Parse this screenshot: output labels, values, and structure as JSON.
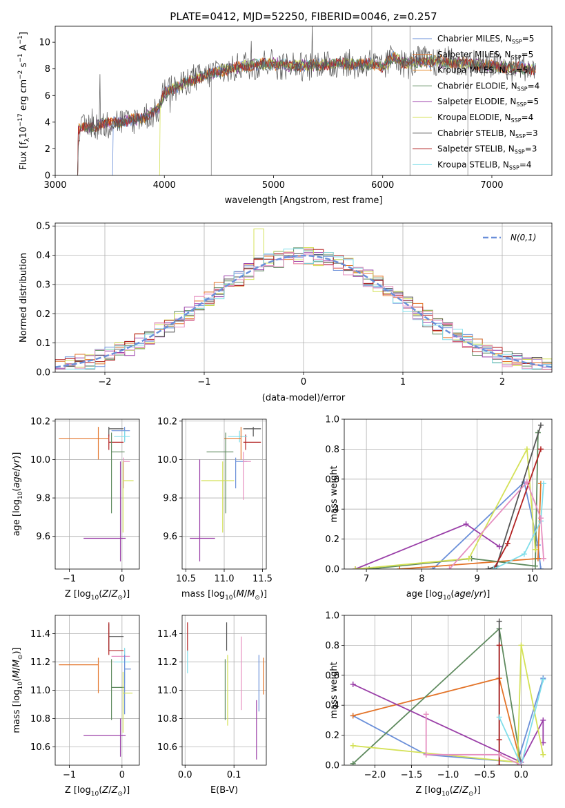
{
  "title": "PLATE=0412, MJD=52250, FIBERID=0046, z=0.257",
  "chart_data": [
    {
      "id": "spectrum",
      "type": "line",
      "xlabel": "wavelength [Angstrom, rest frame]",
      "ylabel": "Flux [f_λ 10^-17 erg cm^-2 s^-1 A^-1]",
      "xlim": [
        3000,
        7550
      ],
      "ylim": [
        0,
        11.2
      ],
      "xticks": [
        3000,
        4000,
        5000,
        6000,
        7000
      ],
      "yticks": [
        0,
        2,
        4,
        6,
        8,
        10
      ],
      "grid": false,
      "legend_position": "top-right",
      "series": [
        {
          "name": "Chabrier MILES, N_SSP=5",
          "color": "#6a8fd9"
        },
        {
          "name": "Salpeter MILES, N_SSP=5",
          "color": "#e37328"
        },
        {
          "name": "Kroupa MILES, N_SSP=5",
          "color": "#e48c2c"
        },
        {
          "name": "Chabrier ELODIE, N_SSP=4",
          "color": "#5e8a5e"
        },
        {
          "name": "Salpeter ELODIE, N_SSP=5",
          "color": "#9a3fa8"
        },
        {
          "name": "Kroupa ELODIE, N_SSP=4",
          "color": "#d4e157"
        },
        {
          "name": "Chabrier STELIB, N_SSP=3",
          "color": "#555555"
        },
        {
          "name": "Salpeter STELIB, N_SSP=3",
          "color": "#b22222"
        },
        {
          "name": "Kroupa STELIB, N_SSP=4",
          "color": "#80deea"
        }
      ],
      "continuum": {
        "x": [
          3200,
          3400,
          3600,
          3800,
          3950,
          4000,
          4200,
          4400,
          4600,
          4800,
          5000,
          5200,
          5400,
          5600,
          5800,
          5900,
          6000,
          6100,
          6200,
          6400,
          6600,
          6800,
          7000,
          7200,
          7400
        ],
        "y": [
          3.4,
          3.8,
          4.0,
          4.3,
          5.0,
          6.2,
          7.0,
          7.6,
          8.0,
          8.3,
          8.4,
          8.2,
          8.3,
          8.4,
          8.3,
          8.4,
          8.1,
          8.9,
          8.4,
          8.6,
          8.5,
          8.4,
          8.2,
          8.1,
          8.0
        ]
      }
    },
    {
      "id": "residuals",
      "type": "histogram",
      "xlabel": "(data-model)/error",
      "ylabel": "Normed distribution",
      "xlim": [
        -2.5,
        2.5
      ],
      "ylim": [
        0,
        0.51
      ],
      "xticks": [
        -2,
        -1,
        0,
        1,
        2
      ],
      "yticks": [
        0.0,
        0.1,
        0.2,
        0.3,
        0.4,
        0.5
      ],
      "grid": true,
      "legend_position": "top-right",
      "legend": "N(0,1)",
      "bin_width": 0.1,
      "gaussian": {
        "mean": 0,
        "sigma": 1,
        "color": "#6a8fd9"
      }
    },
    {
      "id": "age-vs-Z",
      "type": "scatter",
      "xlabel": "Z [log10(Z/Z⊙)]",
      "ylabel": "age  [log10(age/yr)]",
      "xlim": [
        -1.27,
        0.33
      ],
      "ylim": [
        9.43,
        10.21
      ],
      "xticks": [
        -1,
        0
      ],
      "yticks": [
        9.6,
        9.8,
        10.0,
        10.2
      ],
      "grid": true,
      "points": [
        {
          "x": -0.25,
          "y": 10.16,
          "xerr": [
            0.0,
            0.28
          ],
          "yerr": [
            0.04,
            0.01
          ],
          "color": "#555555"
        },
        {
          "x": -0.25,
          "y": 10.09,
          "xerr": [
            0.0,
            0.28
          ],
          "yerr": [
            0.04,
            0.04
          ],
          "color": "#b22222"
        },
        {
          "x": 0.05,
          "y": 10.15,
          "xerr": [
            0.25,
            0.1
          ],
          "yerr": [
            0.05,
            0.02
          ],
          "color": "#6a8fd9"
        },
        {
          "x": 0.05,
          "y": 10.12,
          "xerr": [
            0.2,
            0.1
          ],
          "yerr": [
            0.03,
            0.03
          ],
          "color": "#80deea"
        },
        {
          "x": -0.45,
          "y": 10.11,
          "xerr": [
            0.75,
            0.2
          ],
          "yerr": [
            0.11,
            0.06
          ],
          "color": "#e37328"
        },
        {
          "x": -0.2,
          "y": 10.04,
          "xerr": [
            0.0,
            0.25
          ],
          "yerr": [
            0.32,
            0.1
          ],
          "color": "#5e8a5e"
        },
        {
          "x": 0.03,
          "y": 9.99,
          "xerr": [
            0.0,
            0.12
          ],
          "yerr": [
            0.14,
            0.02
          ],
          "color": "#e68fc0"
        },
        {
          "x": 0.02,
          "y": 9.89,
          "xerr": [
            0.0,
            0.2
          ],
          "yerr": [
            0.27,
            0.1
          ],
          "color": "#d4e157"
        },
        {
          "x": -0.03,
          "y": 9.59,
          "xerr": [
            0.7,
            0.1
          ],
          "yerr": [
            0.12,
            0.4
          ],
          "color": "#9a3fa8"
        }
      ]
    },
    {
      "id": "age-vs-mass",
      "type": "scatter",
      "xlabel": "mass [log10(M/M⊙)]",
      "ylabel": "",
      "xlim": [
        10.45,
        11.55
      ],
      "ylim": [
        9.43,
        10.21
      ],
      "xticks": [
        10.5,
        11.0,
        11.5
      ],
      "yticks": [
        9.6,
        9.8,
        10.0,
        10.2
      ],
      "grid": true,
      "points": [
        {
          "x": 11.38,
          "y": 10.16,
          "xerr": [
            0.13,
            0.1
          ],
          "yerr": [
            0.04,
            0.01
          ],
          "color": "#555555"
        },
        {
          "x": 11.28,
          "y": 10.09,
          "xerr": [
            0.03,
            0.2
          ],
          "yerr": [
            0.04,
            0.04
          ],
          "color": "#b22222"
        },
        {
          "x": 11.2,
          "y": 10.12,
          "xerr": [
            0.15,
            0.1
          ],
          "yerr": [
            0.03,
            0.03
          ],
          "color": "#80deea"
        },
        {
          "x": 11.22,
          "y": 10.11,
          "xerr": [
            0.22,
            0.0
          ],
          "yerr": [
            0.11,
            0.06
          ],
          "color": "#e37328"
        },
        {
          "x": 11.02,
          "y": 10.04,
          "xerr": [
            0.25,
            0.1
          ],
          "yerr": [
            0.32,
            0.1
          ],
          "color": "#5e8a5e"
        },
        {
          "x": 11.15,
          "y": 9.99,
          "xerr": [
            0.0,
            0.15
          ],
          "yerr": [
            0.14,
            0.02
          ],
          "color": "#6a8fd9"
        },
        {
          "x": 11.25,
          "y": 9.99,
          "xerr": [
            0.0,
            0.1
          ],
          "yerr": [
            0.2,
            0.05
          ],
          "color": "#e68fc0"
        },
        {
          "x": 10.98,
          "y": 9.89,
          "xerr": [
            0.28,
            0.15
          ],
          "yerr": [
            0.27,
            0.1
          ],
          "color": "#d4e157"
        },
        {
          "x": 10.68,
          "y": 9.59,
          "xerr": [
            0.13,
            0.2
          ],
          "yerr": [
            0.12,
            0.41
          ],
          "color": "#9a3fa8"
        }
      ]
    },
    {
      "id": "weight-vs-age",
      "type": "line",
      "xlabel": "age  [log10(age/yr)]",
      "ylabel": "mass weight",
      "xlim": [
        6.6,
        10.35
      ],
      "ylim": [
        0,
        1.0
      ],
      "xticks": [
        7,
        8,
        9,
        10
      ],
      "yticks": [
        0.0,
        0.2,
        0.4,
        0.6,
        0.8,
        1.0
      ],
      "grid": true,
      "series": [
        {
          "color": "#6a8fd9",
          "x": [
            8.2,
            9.85,
            10.1,
            10.15
          ],
          "y": [
            0.0,
            0.58,
            0.16,
            0.0
          ]
        },
        {
          "color": "#e37328",
          "x": [
            7.6,
            10.1,
            10.15
          ],
          "y": [
            0.0,
            0.07,
            0.57
          ]
        },
        {
          "color": "#5e8a5e",
          "x": [
            7.05,
            8.9,
            10.05,
            10.1
          ],
          "y": [
            0.0,
            0.07,
            0.02,
            0.91
          ]
        },
        {
          "color": "#9a3fa8",
          "x": [
            6.8,
            8.8,
            9.4
          ],
          "y": [
            0.0,
            0.3,
            0.15
          ]
        },
        {
          "color": "#d4e157",
          "x": [
            6.8,
            8.85,
            9.9,
            10.05
          ],
          "y": [
            0.0,
            0.07,
            0.8,
            0.13
          ]
        },
        {
          "color": "#555555",
          "x": [
            9.2,
            9.35,
            10.15
          ],
          "y": [
            0.0,
            0.02,
            0.96
          ]
        },
        {
          "color": "#b22222",
          "x": [
            9.3,
            9.55,
            10.15
          ],
          "y": [
            0.0,
            0.17,
            0.8
          ]
        },
        {
          "color": "#80deea",
          "x": [
            9.3,
            9.85,
            10.15,
            10.2
          ],
          "y": [
            0.0,
            0.1,
            0.32,
            0.57
          ]
        },
        {
          "color": "#e68fc0",
          "x": [
            8.5,
            9.9,
            10.15,
            10.2
          ],
          "y": [
            0.0,
            0.58,
            0.34,
            0.07
          ]
        }
      ]
    },
    {
      "id": "mass-vs-Z",
      "type": "scatter",
      "xlabel": "Z [log10(Z/Z⊙)]",
      "ylabel": "mass [log10(M/M⊙)]",
      "xlim": [
        -1.27,
        0.33
      ],
      "ylim": [
        10.47,
        11.53
      ],
      "xticks": [
        -1,
        0
      ],
      "yticks": [
        10.6,
        10.8,
        11.0,
        11.2,
        11.4
      ],
      "grid": true,
      "points": [
        {
          "x": -0.25,
          "y": 11.38,
          "xerr": [
            0.0,
            0.28
          ],
          "yerr": [
            0.1,
            0.09
          ],
          "color": "#555555"
        },
        {
          "x": -0.25,
          "y": 11.28,
          "xerr": [
            0.0,
            0.28
          ],
          "yerr": [
            0.03,
            0.2
          ],
          "color": "#b22222"
        },
        {
          "x": 0.05,
          "y": 11.24,
          "xerr": [
            0.25,
            0.1
          ],
          "yerr": [
            0.05,
            0.05
          ],
          "color": "#e68fc0"
        },
        {
          "x": 0.05,
          "y": 11.2,
          "xerr": [
            0.2,
            0.1
          ],
          "yerr": [
            0.15,
            0.1
          ],
          "color": "#80deea"
        },
        {
          "x": -0.45,
          "y": 11.18,
          "xerr": [
            0.75,
            0.0
          ],
          "yerr": [
            0.2,
            0.05
          ],
          "color": "#e37328"
        },
        {
          "x": -0.2,
          "y": 11.02,
          "xerr": [
            0.0,
            0.25
          ],
          "yerr": [
            0.23,
            0.2
          ],
          "color": "#5e8a5e"
        },
        {
          "x": 0.05,
          "y": 11.15,
          "xerr": [
            0.0,
            0.12
          ],
          "yerr": [
            0.32,
            0.1
          ],
          "color": "#6a8fd9"
        },
        {
          "x": 0.02,
          "y": 10.98,
          "xerr": [
            0.0,
            0.18
          ],
          "yerr": [
            0.28,
            0.15
          ],
          "color": "#d4e157"
        },
        {
          "x": -0.03,
          "y": 10.68,
          "xerr": [
            0.7,
            0.1
          ],
          "yerr": [
            0.15,
            0.12
          ],
          "color": "#9a3fa8"
        }
      ]
    },
    {
      "id": "mass-vs-ebv",
      "type": "scatter",
      "xlabel": "E(B-V)",
      "ylabel": "",
      "xlim": [
        -0.006,
        0.166
      ],
      "ylim": [
        10.47,
        11.53
      ],
      "xticks": [
        0.0,
        0.1
      ],
      "yticks": [
        10.6,
        10.8,
        11.0,
        11.2,
        11.4
      ],
      "grid": true,
      "points": [
        {
          "x": 0.005,
          "y": 11.38,
          "yerr": [
            0.1,
            0.1
          ],
          "color": "#b22222"
        },
        {
          "x": 0.005,
          "y": 11.2,
          "yerr": [
            0.08,
            0.08
          ],
          "color": "#80deea"
        },
        {
          "x": 0.085,
          "y": 11.38,
          "yerr": [
            0.1,
            0.1
          ],
          "color": "#555555"
        },
        {
          "x": 0.082,
          "y": 11.02,
          "yerr": [
            0.23,
            0.2
          ],
          "color": "#5e8a5e"
        },
        {
          "x": 0.087,
          "y": 11.0,
          "yerr": [
            0.25,
            0.25
          ],
          "color": "#d4e157"
        },
        {
          "x": 0.115,
          "y": 11.12,
          "yerr": [
            0.26,
            0.26
          ],
          "color": "#e68fc0"
        },
        {
          "x": 0.151,
          "y": 11.05,
          "yerr": [
            0.2,
            0.2
          ],
          "color": "#6a8fd9"
        },
        {
          "x": 0.16,
          "y": 11.1,
          "yerr": [
            0.13,
            0.13
          ],
          "color": "#e37328"
        },
        {
          "x": 0.146,
          "y": 10.72,
          "yerr": [
            0.21,
            0.21
          ],
          "color": "#9a3fa8"
        }
      ]
    },
    {
      "id": "weight-vs-Z",
      "type": "line",
      "xlabel": "Z [log10(Z/Z⊙)]",
      "ylabel": "mass weight",
      "xlim": [
        -2.42,
        0.42
      ],
      "ylim": [
        0,
        1.0
      ],
      "xticks": [
        -2.0,
        -1.5,
        -1.0,
        -0.5,
        0.0
      ],
      "yticks": [
        0.0,
        0.2,
        0.4,
        0.6,
        0.8,
        1.0
      ],
      "grid": true,
      "series": [
        {
          "color": "#6a8fd9",
          "x": [
            -2.3,
            -1.3,
            -0.05,
            0.3
          ],
          "y": [
            0.33,
            0.07,
            0.02,
            0.58
          ]
        },
        {
          "color": "#e37328",
          "x": [
            -2.3,
            -0.3,
            0.0
          ],
          "y": [
            0.33,
            0.58,
            0.0
          ]
        },
        {
          "color": "#5e8a5e",
          "x": [
            -2.3,
            -0.3,
            0.0
          ],
          "y": [
            0.01,
            0.91,
            0.0
          ]
        },
        {
          "color": "#9a3fa8",
          "x": [
            -2.3,
            0.0,
            0.3,
            0.3
          ],
          "y": [
            0.54,
            0.02,
            0.3,
            0.15
          ]
        },
        {
          "color": "#d4e157",
          "x": [
            -2.3,
            -0.05,
            0.0,
            0.3
          ],
          "y": [
            0.13,
            0.02,
            0.8,
            0.07
          ]
        },
        {
          "color": "#555555",
          "x": [
            -0.3,
            -0.3,
            0.0
          ],
          "y": [
            0.96,
            0.0,
            0.0
          ]
        },
        {
          "color": "#b22222",
          "x": [
            -0.3,
            -0.3,
            -0.3
          ],
          "y": [
            0.8,
            0.17,
            0.0
          ]
        },
        {
          "color": "#80deea",
          "x": [
            -0.3,
            0.0,
            0.3
          ],
          "y": [
            0.32,
            0.0,
            0.57
          ]
        },
        {
          "color": "#e68fc0",
          "x": [
            -1.3,
            -1.3,
            -0.3,
            0.0
          ],
          "y": [
            0.34,
            0.07,
            0.07,
            0.0
          ]
        }
      ]
    }
  ]
}
